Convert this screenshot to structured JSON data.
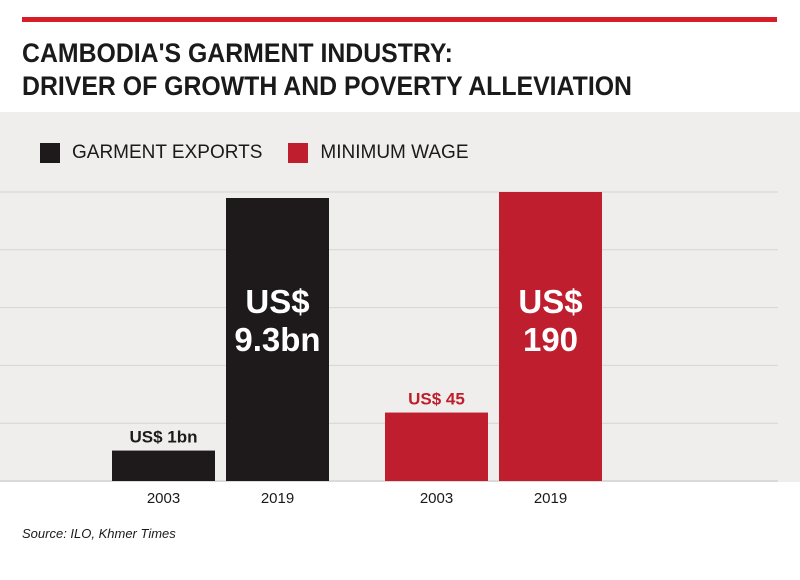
{
  "colors": {
    "accent": "#d71e28",
    "exports": "#1e1a1b",
    "wage": "#be1e2d",
    "panel": "#efeeed",
    "gridline": "#d6d4d2"
  },
  "title_lines": [
    "CAMBODIA'S GARMENT INDUSTRY:",
    "DRIVER OF GROWTH AND POVERTY ALLEVIATION"
  ],
  "legend": [
    {
      "label": "GARMENT EXPORTS",
      "color": "#1e1a1b"
    },
    {
      "label": "MINIMUM WAGE",
      "color": "#be1e2d"
    }
  ],
  "source": "Source: ILO, Khmer Times",
  "chart_data": {
    "type": "bar",
    "grid": true,
    "legend_placement": "top-left",
    "groups": [
      {
        "series": "GARMENT EXPORTS",
        "unit": "US$ bn",
        "categories": [
          "2003",
          "2019"
        ],
        "values": [
          1,
          9.3
        ],
        "labels": [
          [
            "US$ 1bn"
          ],
          [
            "US$",
            "9.3bn"
          ]
        ]
      },
      {
        "series": "MINIMUM WAGE",
        "unit": "US$",
        "categories": [
          "2003",
          "2019"
        ],
        "values": [
          45,
          190
        ],
        "labels": [
          [
            "US$ 45"
          ],
          [
            "US$",
            "190"
          ]
        ]
      }
    ]
  }
}
